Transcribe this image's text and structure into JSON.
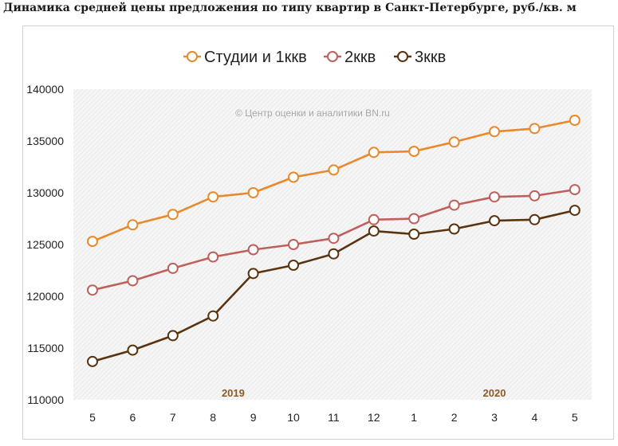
{
  "page": {
    "title": "Динамика средней цены предложения по типу квартир в Санкт-Петербурге, руб./кв. м"
  },
  "chart_data": {
    "type": "line",
    "title": "",
    "xlabel": "",
    "ylabel": "",
    "watermark": "© Центр оценки и аналитики BN.ru",
    "categories": [
      "5",
      "6",
      "7",
      "8",
      "9",
      "10",
      "11",
      "12",
      "1",
      "2",
      "3",
      "4",
      "5"
    ],
    "year_labels": [
      {
        "label": "2019",
        "category_index": 3.5
      },
      {
        "label": "2020",
        "category_index": 10
      }
    ],
    "ylim": [
      110000,
      140000
    ],
    "yticks": [
      110000,
      115000,
      120000,
      125000,
      130000,
      135000,
      140000
    ],
    "grid": "hatched plot background",
    "legend_position": "top",
    "series": [
      {
        "name": "Студии и 1ккв",
        "color": "#e8892b",
        "values": [
          125300,
          126900,
          127900,
          129600,
          130000,
          131500,
          132200,
          133900,
          134000,
          134900,
          135900,
          136200,
          137000
        ]
      },
      {
        "name": "2ккв",
        "color": "#c0605c",
        "values": [
          120600,
          121500,
          122700,
          123800,
          124500,
          125000,
          125600,
          127400,
          127500,
          128800,
          129600,
          129700,
          130300
        ]
      },
      {
        "name": "3ккв",
        "color": "#5a3410",
        "values": [
          113700,
          114800,
          116200,
          118100,
          122200,
          123000,
          124100,
          126300,
          126000,
          126500,
          127300,
          127400,
          128300
        ]
      }
    ]
  }
}
